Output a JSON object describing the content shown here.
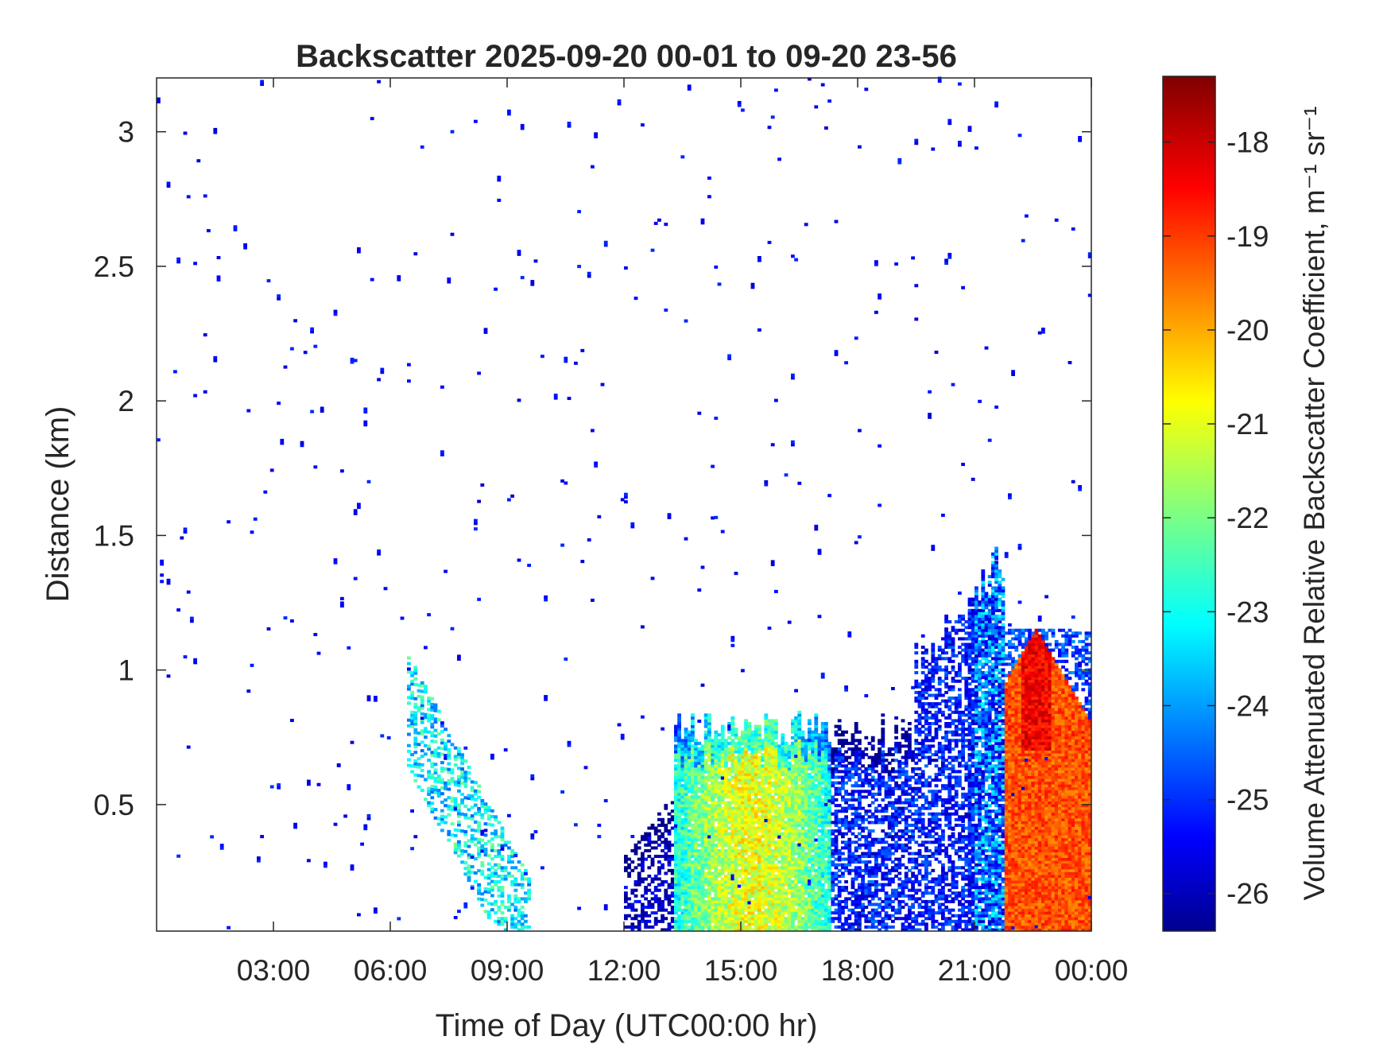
{
  "chart_data": {
    "type": "heatmap",
    "title": "Backscatter 2025-09-20 00-01 to 09-20 23-56",
    "xlabel": "Time of Day (UTC00:00 hr)",
    "ylabel": "Distance (km)",
    "xlim": [
      0,
      24
    ],
    "ylim": [
      0.03,
      3.2
    ],
    "x_ticks": [
      3,
      6,
      9,
      12,
      15,
      18,
      21,
      24
    ],
    "x_tick_labels": [
      "03:00",
      "06:00",
      "09:00",
      "12:00",
      "15:00",
      "18:00",
      "21:00",
      "00:00"
    ],
    "y_ticks": [
      0.5,
      1,
      1.5,
      2,
      2.5,
      3
    ],
    "y_tick_labels": [
      "0.5",
      "1",
      "1.5",
      "2",
      "2.5",
      "3"
    ],
    "colorbar": {
      "label": "Volume Attenuated Relative Backscatter Coefficient, m⁻¹ sr⁻¹",
      "range": [
        -26.4,
        -17.3
      ],
      "ticks": [
        -26,
        -25,
        -24,
        -23,
        -22,
        -21,
        -20,
        -19,
        -18
      ],
      "tick_labels": [
        "-26",
        "-25",
        "-24",
        "-23",
        "-22",
        "-21",
        "-20",
        "-19",
        "-18"
      ],
      "colormap": "jet"
    },
    "regions": [
      {
        "name": "scattered noise",
        "x_range": [
          0,
          24
        ],
        "y_range": [
          0.03,
          3.2
        ],
        "value": -25.8
      },
      {
        "name": "elevated aerosol layer",
        "x_range": [
          6.4,
          9.6
        ],
        "y_range": [
          0.03,
          1.1
        ],
        "value": -23.5
      },
      {
        "name": "daytime boundary layer",
        "x_range": [
          12.0,
          21.0
        ],
        "y_range": [
          0.03,
          0.85
        ],
        "value": -21.5
      },
      {
        "name": "evening boundary layer",
        "x_range": [
          19.5,
          22.2
        ],
        "y_range": [
          0.03,
          1.4
        ],
        "value": -24.8
      },
      {
        "name": "nighttime high backscatter",
        "x_range": [
          21.8,
          24
        ],
        "y_range": [
          0.03,
          1.15
        ],
        "value": -19.2
      }
    ]
  }
}
